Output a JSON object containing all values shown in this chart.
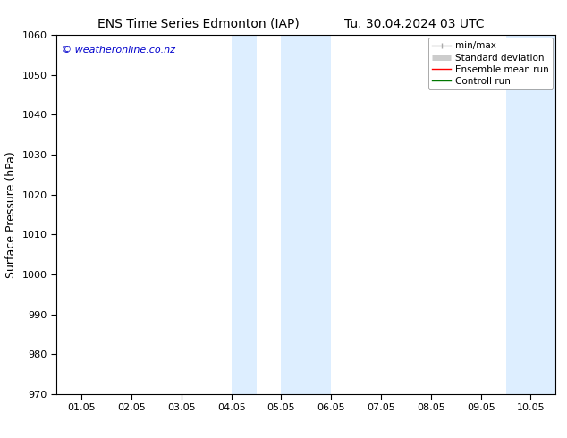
{
  "title_left": "ENS Time Series Edmonton (IAP)",
  "title_right": "Tu. 30.04.2024 03 UTC",
  "ylabel": "Surface Pressure (hPa)",
  "ylim": [
    970,
    1060
  ],
  "yticks": [
    970,
    980,
    990,
    1000,
    1010,
    1020,
    1030,
    1040,
    1050,
    1060
  ],
  "xtick_labels": [
    "01.05",
    "02.05",
    "03.05",
    "04.05",
    "05.05",
    "06.05",
    "07.05",
    "08.05",
    "09.05",
    "10.05"
  ],
  "xtick_positions": [
    0,
    1,
    2,
    3,
    4,
    5,
    6,
    7,
    8,
    9
  ],
  "xlim": [
    -0.5,
    9.5
  ],
  "shaded_regions": [
    {
      "x_start": 3.0,
      "x_end": 3.5
    },
    {
      "x_start": 4.0,
      "x_end": 5.0
    },
    {
      "x_start": 8.5,
      "x_end": 9.0
    },
    {
      "x_start": 9.0,
      "x_end": 9.5
    }
  ],
  "shaded_color": "#ddeeff",
  "watermark": "© weatheronline.co.nz",
  "watermark_color": "#0000cc",
  "legend_items": [
    {
      "label": "min/max",
      "color": "#aaaaaa",
      "lw": 1.0,
      "style": "minmax"
    },
    {
      "label": "Standard deviation",
      "color": "#cccccc",
      "lw": 5,
      "style": "bar"
    },
    {
      "label": "Ensemble mean run",
      "color": "#ff0000",
      "lw": 1.0,
      "style": "line"
    },
    {
      "label": "Controll run",
      "color": "#007700",
      "lw": 1.0,
      "style": "line"
    }
  ],
  "bg_color": "#ffffff",
  "title_fontsize": 10,
  "axis_label_fontsize": 9,
  "tick_fontsize": 8,
  "watermark_fontsize": 8,
  "legend_fontsize": 7.5
}
